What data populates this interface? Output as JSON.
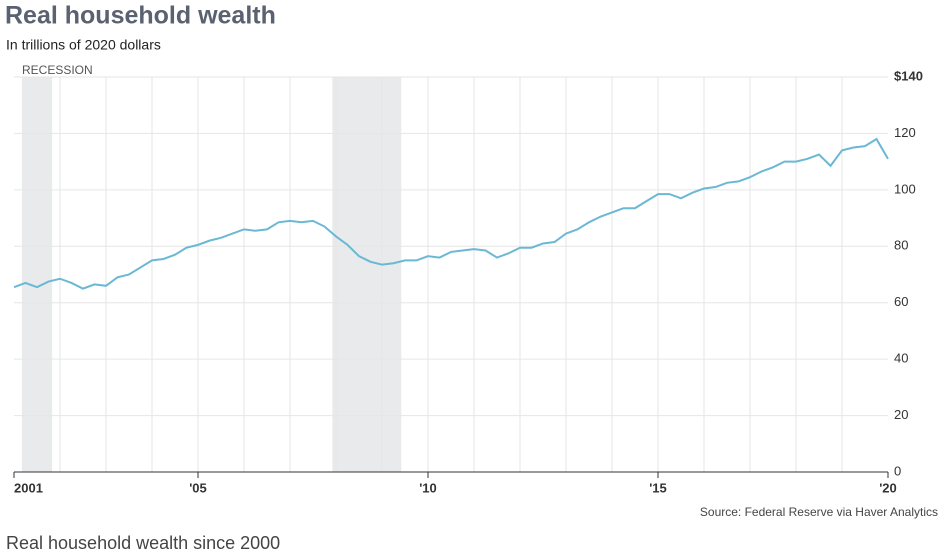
{
  "chart_data": {
    "type": "line",
    "title": "Real household wealth",
    "subtitle": "In trillions of 2020 dollars",
    "recession_label": "RECESSION",
    "source": "Source: Federal Reserve via Haver Analytics",
    "caption": "Real household wealth since 2000",
    "recessions": [
      [
        2001.17,
        2001.83
      ],
      [
        2007.92,
        2009.42
      ]
    ],
    "x": [
      2001,
      2001.25,
      2001.5,
      2001.75,
      2002,
      2002.25,
      2002.5,
      2002.75,
      2003,
      2003.25,
      2003.5,
      2003.75,
      2004,
      2004.25,
      2004.5,
      2004.75,
      2005,
      2005.25,
      2005.5,
      2005.75,
      2006,
      2006.25,
      2006.5,
      2006.75,
      2007,
      2007.25,
      2007.5,
      2007.75,
      2008,
      2008.25,
      2008.5,
      2008.75,
      2009,
      2009.25,
      2009.5,
      2009.75,
      2010,
      2010.25,
      2010.5,
      2010.75,
      2011,
      2011.25,
      2011.5,
      2011.75,
      2012,
      2012.25,
      2012.5,
      2012.75,
      2013,
      2013.25,
      2013.5,
      2013.75,
      2014,
      2014.25,
      2014.5,
      2014.75,
      2015,
      2015.25,
      2015.5,
      2015.75,
      2016,
      2016.25,
      2016.5,
      2016.75,
      2017,
      2017.25,
      2017.5,
      2017.75,
      2018,
      2018.25,
      2018.5,
      2018.75,
      2019,
      2019.25,
      2019.5,
      2019.75,
      2020
    ],
    "series": [
      {
        "color": "#6bb8d4",
        "values": [
          65.5,
          67,
          65.5,
          67.5,
          68.5,
          67,
          65,
          66.5,
          66,
          69,
          70,
          72.5,
          75,
          75.5,
          77,
          79.5,
          80.5,
          82,
          83,
          84.5,
          86,
          85.5,
          86,
          88.5,
          89,
          88.5,
          89,
          87,
          83.5,
          80.5,
          76.5,
          74.5,
          73.5,
          74,
          75,
          75,
          76.5,
          76,
          78,
          78.5,
          79,
          78.5,
          76,
          77.5,
          79.5,
          79.5,
          81,
          81.5,
          84.5,
          86,
          88.5,
          90.5,
          92,
          93.5,
          93.5,
          96,
          98.5,
          98.5,
          97,
          99,
          100.5,
          101,
          102.5,
          103,
          104.5,
          106.5,
          108,
          110,
          110,
          111,
          112.5,
          108.5,
          114,
          115,
          115.5,
          118,
          111
        ]
      }
    ],
    "xlim": [
      2001,
      2020
    ],
    "xticks": [
      {
        "value": 2001,
        "label": "2001"
      },
      {
        "value": 2005,
        "label": "'05"
      },
      {
        "value": 2010,
        "label": "'10"
      },
      {
        "value": 2015,
        "label": "'15"
      },
      {
        "value": 2020,
        "label": "'20"
      }
    ],
    "xgrid": [
      2002,
      2003,
      2004,
      2005,
      2006,
      2007,
      2008,
      2009,
      2010,
      2011,
      2012,
      2013,
      2014,
      2015,
      2016,
      2017,
      2018,
      2019
    ],
    "ylim": [
      0,
      140
    ],
    "yticks": [
      0,
      20,
      40,
      60,
      80,
      100,
      120,
      {
        "value": 140,
        "label": "$140"
      }
    ],
    "grid": true
  }
}
